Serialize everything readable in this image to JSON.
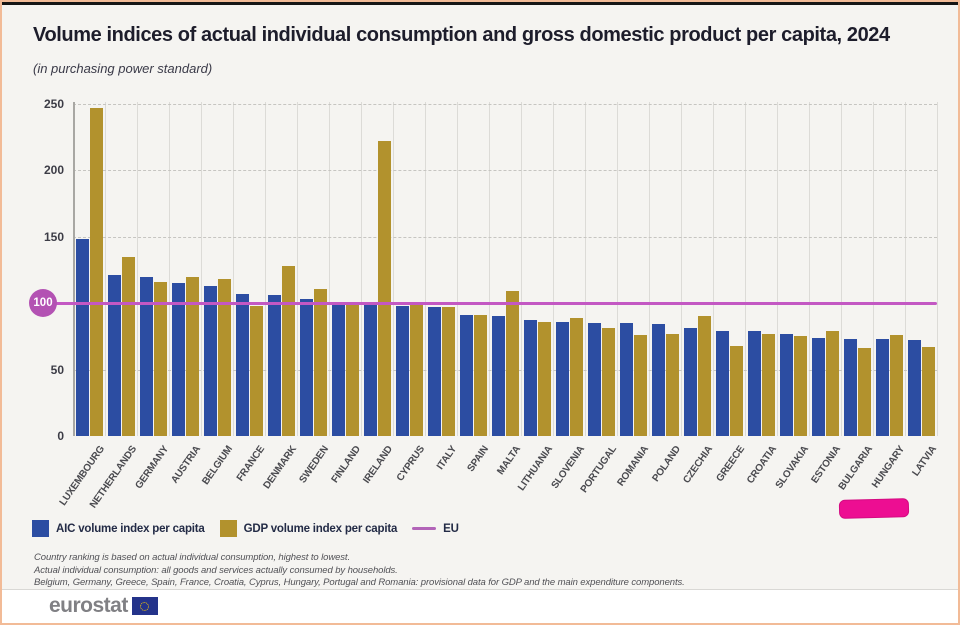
{
  "header": {
    "title": "Volume indices of actual individual consumption and gross domestic product per capita, 2024",
    "subtitle": "(in purchasing power standard)"
  },
  "chart_data": {
    "type": "bar",
    "title": "Volume indices of actual individual consumption and gross domestic product per capita, 2024",
    "subtitle": "(in purchasing power standard)",
    "ylim": [
      0,
      250
    ],
    "y_ticks": [
      0,
      50,
      100,
      150,
      200,
      250
    ],
    "grid": "horizontal dashed lines at ticks, vertical solid light separators per country",
    "legend_position": "bottom-left",
    "categories": [
      "LUXEMBOURG",
      "NETHERLANDS",
      "GERMANY",
      "AUSTRIA",
      "BELGIUM",
      "FRANCE",
      "DENMARK",
      "SWEDEN",
      "FINLAND",
      "IRELAND",
      "CYPRUS",
      "ITALY",
      "SPAIN",
      "MALTA",
      "LITHUANIA",
      "SLOVENIA",
      "PORTUGAL",
      "ROMANIA",
      "POLAND",
      "CZECHIA",
      "GREECE",
      "CROATIA",
      "SLOVAKIA",
      "ESTONIA",
      "BULGARIA",
      "HUNGARY",
      "LATVIA"
    ],
    "series": [
      {
        "name": "AIC volume index per capita",
        "color": "#2c4da2",
        "values": [
          148,
          121,
          120,
          115,
          113,
          107,
          106,
          103,
          101,
          100,
          98,
          97,
          91,
          90,
          87,
          86,
          85,
          85,
          84,
          81,
          79,
          79,
          77,
          74,
          73,
          73,
          72
        ]
      },
      {
        "name": "GDP volume index per capita",
        "color": "#b2922d",
        "values": [
          247,
          135,
          116,
          120,
          118,
          98,
          128,
          111,
          101,
          222,
          99,
          97,
          91,
          109,
          86,
          89,
          81,
          76,
          77,
          90,
          68,
          77,
          75,
          79,
          66,
          76,
          67
        ]
      }
    ],
    "eu_line": {
      "label": "EU",
      "value": 100,
      "line_color": "#c358c3",
      "badge_color": "#b352b3",
      "badge_text": "100",
      "legend_swatch_color": "#b264b8"
    }
  },
  "annotation": {
    "type": "pink-highlight-marker",
    "under_label": "BULGARIA",
    "color": "#ed0e92",
    "border_color": "#d40b82"
  },
  "footnotes": [
    "Country ranking is based on actual individual consumption, highest to lowest.",
    "Actual individual consumption: all goods and services actually consumed by households.",
    "Belgium, Germany, Greece, Spain, France, Croatia, Cyprus, Hungary, Portugal and Romania: provisional data for GDP and the main expenditure components."
  ],
  "footer": {
    "logo_text": "eurostat"
  },
  "colors": {
    "card_background": "#f5f4f1",
    "page_border": "#f2bb97",
    "top_bar": "#161616",
    "aic_bar": "#2c4da2",
    "gdp_bar": "#b2922d",
    "eu_line": "#c358c3",
    "flag_blue": "#24338a",
    "flag_stars": "#ffcc00"
  }
}
